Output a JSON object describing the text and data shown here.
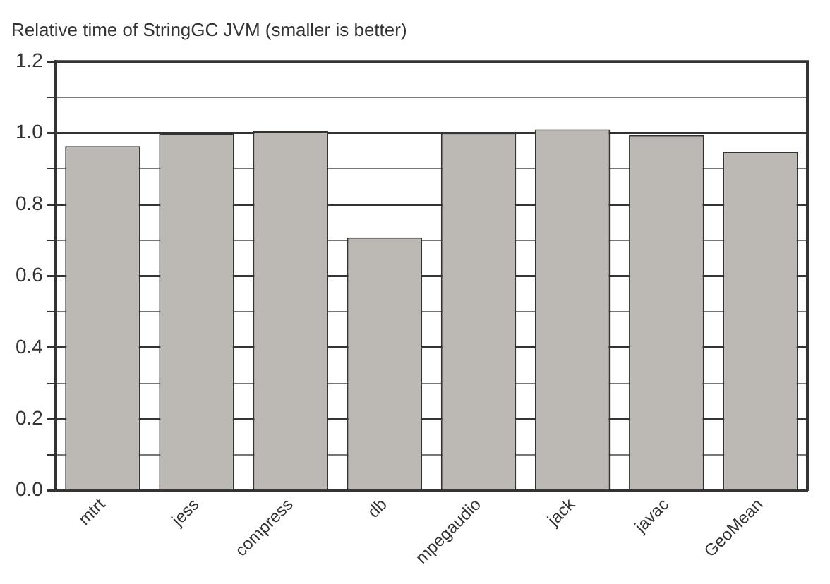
{
  "chart_data": {
    "type": "bar",
    "title": "Relative time of StringGC JVM (smaller is better)",
    "categories": [
      "mtrt",
      "jess",
      "compress",
      "db",
      "mpegaudio",
      "jack",
      "javac",
      "GeoMean"
    ],
    "values": [
      0.963,
      0.998,
      1.005,
      0.708,
      1.0,
      1.01,
      0.994,
      0.948
    ],
    "color": "#bcb9b4",
    "ylim": [
      0,
      1.2
    ],
    "yticks": [
      {
        "value": 0,
        "label": "0.0"
      },
      {
        "value": 0.1,
        "label": null
      },
      0.2,
      {
        "value": 0.3,
        "label": null
      },
      0.4,
      {
        "value": 0.5,
        "label": null
      },
      0.6,
      {
        "value": 0.7,
        "label": null
      },
      0.8,
      {
        "value": 0.9,
        "label": null
      },
      {
        "value": 1,
        "label": "1.0"
      },
      {
        "value": 1.1,
        "label": null
      },
      1.2
    ],
    "grid": "y"
  }
}
